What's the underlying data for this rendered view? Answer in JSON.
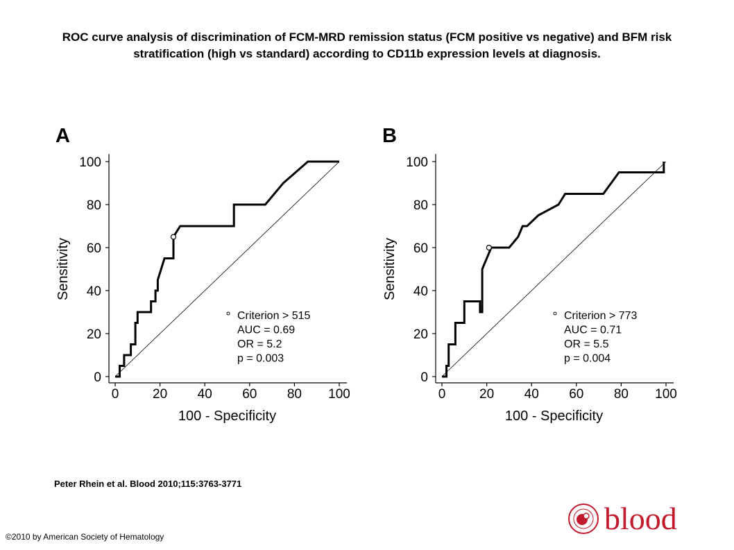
{
  "title": "ROC curve analysis of discrimination of FCM-MRD remission status (FCM positive vs negative) and BFM risk stratification (high vs standard) according to CD11b expression levels at diagnosis.",
  "citation": "Peter Rhein et al. Blood 2010;115:3763-3771",
  "copyright": "©2010 by American Society of Hematology",
  "logo": {
    "word": "blood",
    "color": "#c01a2c"
  },
  "chart_data": [
    {
      "type": "line",
      "panel_label": "A",
      "xlabel": "100 - Specificity",
      "ylabel": "Sensitivity",
      "xlim": [
        0,
        100
      ],
      "ylim": [
        0,
        100
      ],
      "xticks": [
        0,
        20,
        40,
        60,
        80,
        100
      ],
      "yticks": [
        0,
        20,
        40,
        60,
        80,
        100
      ],
      "grid": false,
      "reference_line": [
        [
          0,
          0
        ],
        [
          100,
          100
        ]
      ],
      "series": [
        {
          "x": [
            0,
            2,
            2,
            4,
            4,
            7,
            7,
            9,
            9,
            10,
            10,
            11,
            11,
            16,
            16,
            18,
            18,
            19,
            19,
            22,
            22,
            26,
            26,
            29,
            31,
            53,
            53,
            67,
            75,
            86,
            100
          ],
          "y": [
            0,
            0,
            5,
            5,
            10,
            10,
            15,
            15,
            25,
            25,
            30,
            30,
            30,
            30,
            35,
            35,
            40,
            40,
            45,
            55,
            55,
            55,
            65,
            70,
            70,
            70,
            80,
            80,
            90,
            100,
            100
          ]
        }
      ],
      "marker": {
        "x": 26,
        "y": 65
      },
      "annotations": [
        "Criterion > 515",
        "AUC = 0.69",
        "OR = 5.2",
        "p = 0.003"
      ]
    },
    {
      "type": "line",
      "panel_label": "B",
      "xlabel": "100 - Specificity",
      "ylabel": "Sensitivity",
      "xlim": [
        0,
        100
      ],
      "ylim": [
        0,
        100
      ],
      "xticks": [
        0,
        20,
        40,
        60,
        80,
        100
      ],
      "yticks": [
        0,
        20,
        40,
        60,
        80,
        100
      ],
      "grid": false,
      "reference_line": [
        [
          0,
          0
        ],
        [
          100,
          100
        ]
      ],
      "series": [
        {
          "x": [
            0,
            2,
            2,
            3,
            3,
            6,
            6,
            10,
            10,
            17,
            17,
            18,
            18,
            22,
            30,
            34,
            36,
            38,
            43,
            52,
            55,
            72,
            79,
            99,
            99
          ],
          "y": [
            0,
            0,
            5,
            5,
            15,
            15,
            25,
            25,
            35,
            35,
            30,
            30,
            50,
            60,
            60,
            65,
            70,
            70,
            75,
            80,
            85,
            85,
            95,
            95,
            100
          ]
        }
      ],
      "marker": {
        "x": 21,
        "y": 60
      },
      "annotations": [
        "Criterion > 773",
        "AUC = 0.71",
        "OR = 5.5",
        "p = 0.004"
      ]
    }
  ]
}
